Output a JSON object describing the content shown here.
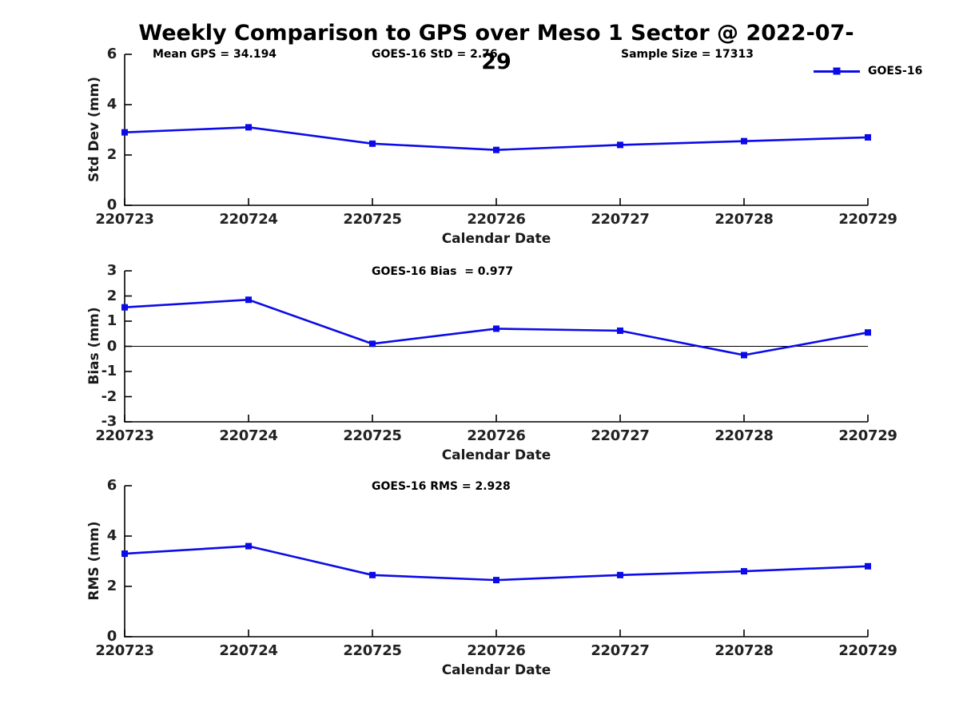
{
  "title": "Weekly Comparison to GPS over Meso 1 Sector @ 2022-07-29",
  "annotations": {
    "mean_gps": "Mean GPS = 34.194",
    "goes16_std": "GOES-16 StD = 2.76",
    "sample_size": "Sample Size = 17313"
  },
  "legend": {
    "label": "GOES-16",
    "marker": "filled-square",
    "color": "#0B0BE8"
  },
  "colors": {
    "series": "#0B0BE8",
    "axis": "#000000",
    "zero_line": "#000000",
    "background": "#ffffff"
  },
  "chart_data": [
    {
      "type": "line",
      "name": "std-dev-subplot",
      "title": "",
      "ylabel": "Std Dev (mm)",
      "xlabel": "Calendar Date",
      "categories": [
        "220723",
        "220724",
        "220725",
        "220726",
        "220727",
        "220728",
        "220729"
      ],
      "ylim": [
        0,
        6
      ],
      "yticks": [
        0,
        2,
        4,
        6
      ],
      "grid": false,
      "legend_position": "top-right",
      "series": [
        {
          "name": "GOES-16",
          "color": "#0B0BE8",
          "marker": "square",
          "values": [
            2.9,
            3.1,
            2.45,
            2.2,
            2.4,
            2.55,
            2.7
          ]
        }
      ]
    },
    {
      "type": "line",
      "name": "bias-subplot",
      "title": "GOES-16 Bias  = 0.977",
      "ylabel": "Bias (mm)",
      "xlabel": "Calendar Date",
      "categories": [
        "220723",
        "220724",
        "220725",
        "220726",
        "220727",
        "220728",
        "220729"
      ],
      "ylim": [
        -3,
        3
      ],
      "yticks": [
        -3,
        -2,
        -1,
        0,
        1,
        2,
        3
      ],
      "grid": false,
      "zero_line": true,
      "series": [
        {
          "name": "GOES-16",
          "color": "#0B0BE8",
          "marker": "square",
          "values": [
            1.55,
            1.85,
            0.1,
            0.7,
            0.62,
            -0.35,
            0.55
          ]
        }
      ]
    },
    {
      "type": "line",
      "name": "rms-subplot",
      "title": "GOES-16 RMS = 2.928",
      "ylabel": "RMS (mm)",
      "xlabel": "Calendar Date",
      "categories": [
        "220723",
        "220724",
        "220725",
        "220726",
        "220727",
        "220728",
        "220729"
      ],
      "ylim": [
        0,
        6
      ],
      "yticks": [
        0,
        2,
        4,
        6
      ],
      "grid": false,
      "series": [
        {
          "name": "GOES-16",
          "color": "#0B0BE8",
          "marker": "square",
          "values": [
            3.3,
            3.6,
            2.45,
            2.25,
            2.45,
            2.6,
            2.8
          ]
        }
      ]
    }
  ]
}
